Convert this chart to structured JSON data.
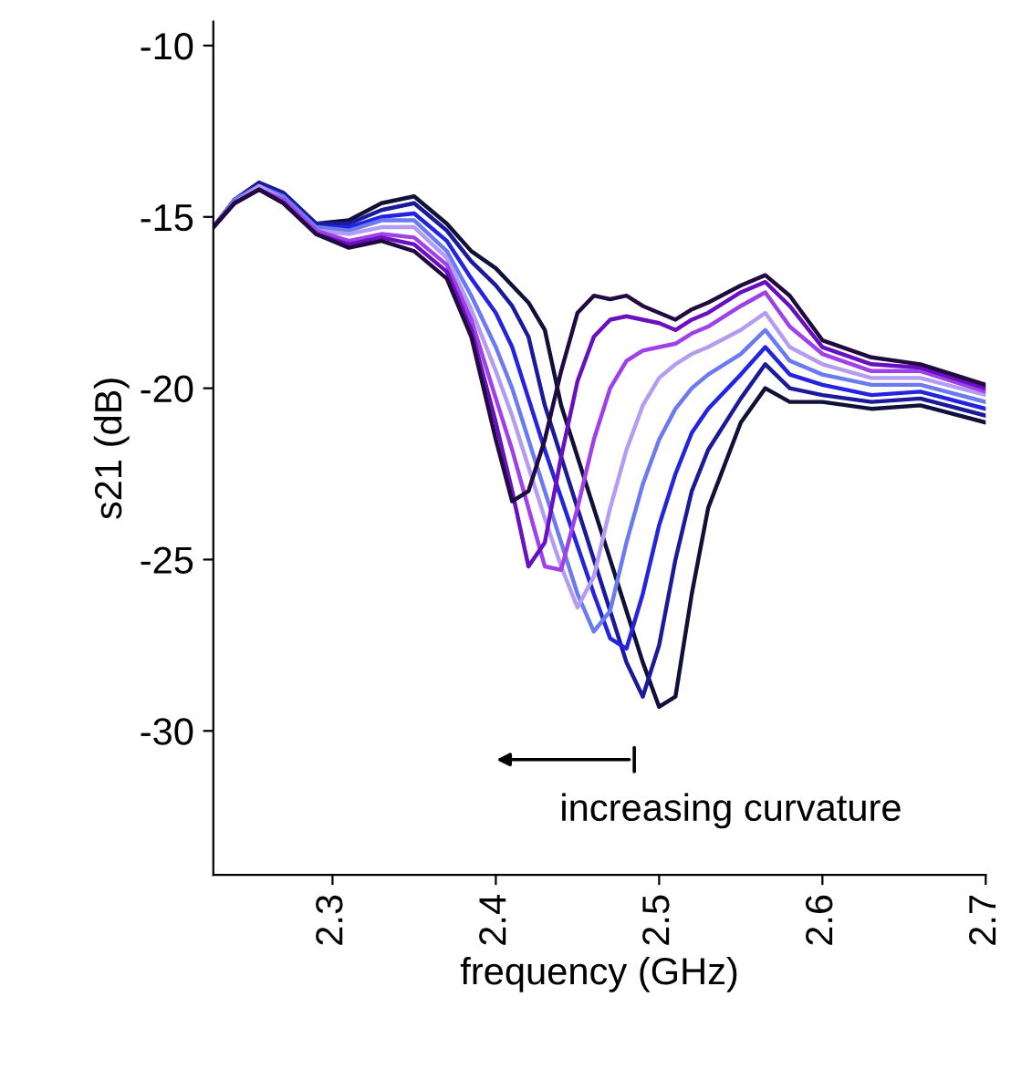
{
  "chart_data": {
    "type": "line",
    "xlabel": "frequency (GHz)",
    "ylabel": "s21 (dB)",
    "x": [
      2.227,
      2.24,
      2.255,
      2.27,
      2.29,
      2.31,
      2.33,
      2.35,
      2.37,
      2.385,
      2.4,
      2.41,
      2.42,
      2.43,
      2.44,
      2.45,
      2.46,
      2.47,
      2.48,
      2.49,
      2.5,
      2.51,
      2.52,
      2.53,
      2.55,
      2.565,
      2.58,
      2.6,
      2.63,
      2.66,
      2.7
    ],
    "series": [
      {
        "color": "#101038",
        "values": [
          -15.3,
          -14.5,
          -14.0,
          -14.3,
          -15.2,
          -15.1,
          -14.6,
          -14.4,
          -15.2,
          -16.0,
          -16.5,
          -17.0,
          -17.5,
          -18.3,
          -20.5,
          -22.0,
          -23.5,
          -25.0,
          -26.5,
          -28.0,
          -29.3,
          -29.0,
          -26.0,
          -23.5,
          -21.0,
          -20.0,
          -20.4,
          -20.4,
          -20.6,
          -20.5,
          -21.0
        ]
      },
      {
        "color": "#1a1a9a",
        "values": [
          -15.3,
          -14.5,
          -14.0,
          -14.3,
          -15.2,
          -15.2,
          -14.8,
          -14.6,
          -15.4,
          -16.3,
          -17.0,
          -17.6,
          -18.5,
          -20.5,
          -22.0,
          -23.5,
          -25.0,
          -26.5,
          -28.0,
          -29.0,
          -27.5,
          -25.0,
          -23.0,
          -21.8,
          -20.3,
          -19.3,
          -20.0,
          -20.2,
          -20.4,
          -20.3,
          -20.8
        ]
      },
      {
        "color": "#2424e0",
        "values": [
          -15.3,
          -14.5,
          -14.1,
          -14.4,
          -15.3,
          -15.3,
          -15.0,
          -14.9,
          -15.7,
          -16.8,
          -17.8,
          -18.8,
          -20.3,
          -21.8,
          -23.2,
          -24.6,
          -26.0,
          -27.3,
          -27.6,
          -26.0,
          -24.0,
          -22.5,
          -21.3,
          -20.6,
          -19.6,
          -18.8,
          -19.6,
          -19.9,
          -20.2,
          -20.1,
          -20.6
        ]
      },
      {
        "color": "#6a7af0",
        "values": [
          -15.3,
          -14.5,
          -14.1,
          -14.4,
          -15.3,
          -15.4,
          -15.1,
          -15.1,
          -16.0,
          -17.3,
          -18.8,
          -20.0,
          -21.5,
          -23.0,
          -24.5,
          -26.0,
          -27.1,
          -26.5,
          -24.5,
          -22.8,
          -21.5,
          -20.6,
          -20.0,
          -19.6,
          -19.0,
          -18.3,
          -19.2,
          -19.6,
          -19.9,
          -19.9,
          -20.4
        ]
      },
      {
        "color": "#b49cf2",
        "values": [
          -15.3,
          -14.6,
          -14.1,
          -14.5,
          -15.4,
          -15.5,
          -15.3,
          -15.3,
          -16.2,
          -17.7,
          -19.5,
          -20.8,
          -22.3,
          -23.8,
          -25.2,
          -26.4,
          -25.5,
          -23.5,
          -21.8,
          -20.5,
          -19.7,
          -19.3,
          -19.0,
          -18.8,
          -18.3,
          -17.8,
          -18.8,
          -19.3,
          -19.7,
          -19.7,
          -20.2
        ]
      },
      {
        "color": "#a040e8",
        "values": [
          -15.3,
          -14.6,
          -14.2,
          -14.5,
          -15.4,
          -15.7,
          -15.5,
          -15.6,
          -16.4,
          -18.0,
          -20.3,
          -21.8,
          -23.5,
          -25.2,
          -25.3,
          -23.5,
          -21.5,
          -20.0,
          -19.2,
          -18.9,
          -18.8,
          -18.7,
          -18.4,
          -18.2,
          -17.6,
          -17.2,
          -18.2,
          -19.0,
          -19.5,
          -19.5,
          -20.1
        ]
      },
      {
        "color": "#6a10c0",
        "values": [
          -15.3,
          -14.6,
          -14.2,
          -14.6,
          -15.5,
          -15.8,
          -15.6,
          -15.8,
          -16.6,
          -18.3,
          -21.0,
          -23.0,
          -25.2,
          -24.5,
          -22.0,
          -19.8,
          -18.5,
          -18.0,
          -17.9,
          -18.0,
          -18.1,
          -18.3,
          -18.0,
          -17.8,
          -17.2,
          -16.9,
          -17.6,
          -18.8,
          -19.3,
          -19.4,
          -20.0
        ]
      },
      {
        "color": "#200a40",
        "values": [
          -15.3,
          -14.6,
          -14.2,
          -14.6,
          -15.5,
          -15.9,
          -15.7,
          -16.0,
          -16.8,
          -18.5,
          -21.5,
          -23.3,
          -23.0,
          -21.5,
          -19.5,
          -17.8,
          -17.3,
          -17.4,
          -17.3,
          -17.6,
          -17.8,
          -18.0,
          -17.7,
          -17.5,
          -17.0,
          -16.7,
          -17.3,
          -18.6,
          -19.1,
          -19.3,
          -19.9
        ]
      }
    ],
    "xlim": [
      2.227,
      2.7
    ],
    "xticks": [
      2.3,
      2.4,
      2.5,
      2.6,
      2.7
    ],
    "ylim": [
      -34.2,
      -9.3
    ],
    "yticks": [
      -30,
      -25,
      -20,
      -15,
      -10
    ],
    "annotations": [
      "increasing curvature"
    ],
    "grid": false,
    "legend": false,
    "line_style": "solid",
    "marker": "none"
  }
}
